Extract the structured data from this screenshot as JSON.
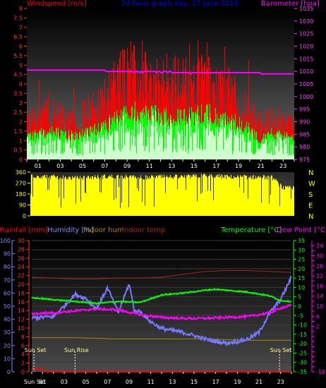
{
  "header": {
    "wind_label": "Windspeed [m/s]",
    "title": "24-hour graph day, 17 June 2014",
    "baro_label": "Barometer [hpa]",
    "rain_label": "Rainfall [mm]",
    "hum_label": "Humidity [%]",
    "inhum_label": "Indoor hum",
    "intemp_label": "Indoor temp",
    "temp_label": "Temperature [°C]",
    "dew_label": "Dew Point [°C]"
  },
  "colors": {
    "wind": "#ff0000",
    "gust_avg": "#00ff00",
    "wind_low": "#ccffcc",
    "baro": "#ff00ff",
    "dir": "#ffff00",
    "humidity": "#7777ff",
    "indoor_hum": "#aa8800",
    "indoor_temp": "#aa2222",
    "rain": "#ff0000",
    "temp": "#00ff00",
    "dew": "#ff00ff",
    "tick_left": "#ff3333",
    "tick_right_top": "#ff44ff",
    "tick_hum": "#8888ff"
  },
  "chart_data": [
    {
      "id": "wind",
      "type": "bar",
      "title": "24-hour graph day, 17 June 2014",
      "ylabel": "Windspeed [m/s]",
      "ylabel2": "Barometer [hpa]",
      "ylim": [
        0,
        8
      ],
      "y2lim": [
        975,
        1035
      ],
      "yticks": [
        "0",
        "0.5",
        "1",
        "1.5",
        "2",
        "2.5",
        "3",
        "3.5",
        "4",
        "4.5",
        "5",
        "5.5",
        "6",
        "6.5",
        "7",
        "7.5",
        "8"
      ],
      "y2ticks": [
        "975",
        "980",
        "985",
        "990",
        "995",
        "1000",
        "1005",
        "1010",
        "1015",
        "1020",
        "1025",
        "1030",
        "1035"
      ],
      "xticks": [
        "01",
        "03",
        "05",
        "07",
        "09",
        "11",
        "13",
        "15",
        "17",
        "19",
        "21",
        "23"
      ],
      "series": [
        {
          "name": "Wind gust",
          "x": [
            0,
            1,
            2,
            3,
            4,
            5,
            6,
            7,
            8,
            9,
            10,
            11,
            12,
            13,
            14,
            15,
            16,
            17,
            18,
            19,
            20,
            21,
            22,
            23,
            24
          ],
          "values": [
            2.3,
            2.5,
            2.6,
            2.4,
            2.2,
            2.5,
            2.9,
            3.3,
            4.2,
            5.0,
            5.3,
            5.0,
            4.6,
            4.4,
            4.2,
            4.4,
            5.0,
            4.0,
            3.8,
            3.5,
            2.6,
            1.8,
            2.4,
            2.1,
            2.0
          ]
        },
        {
          "name": "Wind average",
          "x": [
            0,
            1,
            2,
            3,
            4,
            5,
            6,
            7,
            8,
            9,
            10,
            11,
            12,
            13,
            14,
            15,
            16,
            17,
            18,
            19,
            20,
            21,
            22,
            23,
            24
          ],
          "values": [
            1.2,
            1.4,
            1.5,
            1.4,
            1.3,
            1.4,
            1.6,
            1.8,
            2.2,
            2.6,
            2.7,
            2.5,
            2.4,
            2.3,
            2.3,
            2.4,
            2.6,
            2.3,
            2.1,
            2.0,
            1.6,
            1.1,
            1.4,
            1.3,
            1.2
          ]
        },
        {
          "name": "Barometer",
          "x": [
            0,
            2,
            4,
            6,
            8,
            10,
            12,
            14,
            16,
            18,
            20,
            22,
            23,
            24
          ],
          "values": [
            1010.5,
            1010.5,
            1010.5,
            1010.5,
            1010,
            1010,
            1010,
            1009.5,
            1009.5,
            1009.5,
            1009.5,
            1009,
            1009,
            1009
          ]
        }
      ]
    },
    {
      "id": "direction",
      "type": "bar",
      "ylim": [
        0,
        360
      ],
      "yticks": [
        "0",
        "90",
        "180",
        "270",
        "360"
      ],
      "right_labels": [
        "N",
        "W",
        "S",
        "E",
        "N"
      ],
      "series": [
        {
          "name": "Wind direction",
          "x": [
            0,
            2,
            4,
            6,
            8,
            10,
            12,
            14,
            16,
            18,
            20,
            22,
            23,
            24
          ],
          "values": [
            330,
            320,
            310,
            320,
            325,
            315,
            320,
            320,
            330,
            320,
            320,
            315,
            230,
            225
          ]
        }
      ]
    },
    {
      "id": "temperature",
      "type": "line",
      "ylabel_left": "Rainfall [mm]",
      "ylabel_left2": "Humidity [%]",
      "ylabel_right": "Temperature [°C]",
      "ylabel_right2": "Dew Point [°C]",
      "rain_lim": [
        0,
        30
      ],
      "hum_lim": [
        0,
        100
      ],
      "temp_lim": [
        -35,
        35
      ],
      "dew_lim": [
        -16,
        36
      ],
      "rain_ticks": [
        "0",
        "2",
        "4",
        "6",
        "8",
        "10",
        "12",
        "14",
        "16",
        "18",
        "20",
        "22",
        "24",
        "26",
        "28",
        "30"
      ],
      "hum_ticks": [
        "0",
        "10",
        "20",
        "30",
        "40",
        "50",
        "60",
        "70",
        "80",
        "90",
        "100"
      ],
      "temp_ticks": [
        "35",
        "30",
        "25",
        "20",
        "15",
        "10",
        "5",
        "0",
        "-5",
        "-10",
        "-15",
        "-20",
        "-25",
        "-30",
        "-35"
      ],
      "dew_ticks": [
        "34",
        "32",
        "30",
        "28",
        "26",
        "24",
        "22",
        "20",
        "18",
        "16",
        "14",
        "12",
        "10",
        "8",
        "6",
        "4",
        "2",
        "0",
        "-2",
        "-4",
        "-6",
        "-8",
        "-10",
        "-12",
        "-14",
        "-16"
      ],
      "xticks": [
        "01",
        "03",
        "05",
        "07",
        "09",
        "11",
        "13",
        "15",
        "17",
        "19",
        "21",
        "23"
      ],
      "events": [
        {
          "label": "Sun Set",
          "hour": 0.2
        },
        {
          "label": "Sun Rise",
          "hour": 4.0
        },
        {
          "label": "Sun Set",
          "hour": 22.9
        }
      ],
      "bottom_left_label": "Sun Set",
      "series": [
        {
          "name": "Temperature",
          "unit": "°C",
          "x": [
            0,
            2,
            4,
            6,
            8,
            10,
            12,
            14,
            16,
            17,
            18,
            20,
            22,
            23,
            24
          ],
          "values": [
            4.5,
            3.5,
            2.5,
            1.5,
            2.5,
            2.0,
            6.0,
            7.0,
            8.5,
            9.0,
            8.5,
            7.5,
            5.5,
            3.0,
            2.5
          ]
        },
        {
          "name": "Dew Point",
          "unit": "°C",
          "x": [
            0,
            2,
            4,
            6,
            8,
            10,
            12,
            14,
            16,
            18,
            20,
            22,
            23,
            24
          ],
          "values": [
            -4.0,
            -3.5,
            -2.5,
            -1.5,
            -2.0,
            -4.5,
            -6.0,
            -6.5,
            -6.5,
            -6.0,
            -5.5,
            -3.5,
            -1.0,
            0.5
          ]
        },
        {
          "name": "Humidity",
          "unit": "%",
          "x": [
            0,
            2,
            3,
            4,
            5,
            6,
            7,
            8,
            9,
            9.5,
            10,
            11,
            12,
            14,
            16,
            17,
            18,
            19,
            20,
            21,
            22,
            23,
            24
          ],
          "values": [
            41,
            42,
            50,
            59,
            56,
            48,
            64,
            45,
            67,
            46,
            46,
            38,
            33,
            30,
            25,
            23,
            22,
            23,
            25,
            30,
            45,
            55,
            72
          ]
        },
        {
          "name": "Indoor temp",
          "unit": "°C",
          "x": [
            0,
            2,
            4,
            6,
            8,
            10,
            12,
            14,
            16,
            18,
            20,
            22,
            24
          ],
          "values": [
            15.5,
            15.0,
            14.5,
            14.5,
            15.0,
            15.0,
            15.5,
            17.0,
            18.5,
            19.0,
            19.0,
            18.5,
            18.0
          ]
        },
        {
          "name": "Indoor hum",
          "unit": "%",
          "x": [
            0,
            4,
            8,
            12,
            16,
            20,
            24
          ],
          "values": [
            26,
            26,
            25,
            25,
            25,
            24,
            24
          ]
        },
        {
          "name": "Rainfall",
          "unit": "mm",
          "x": [
            0,
            1,
            1.3,
            24
          ],
          "values": [
            0.6,
            0.6,
            0,
            0
          ]
        }
      ]
    }
  ]
}
